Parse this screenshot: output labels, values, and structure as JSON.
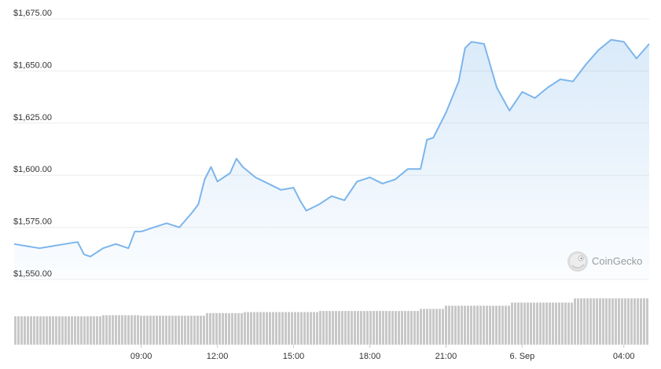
{
  "chart_data": {
    "type": "area",
    "title": "",
    "xlabel": "",
    "ylabel": "",
    "y_ticks": [
      {
        "value": 1675,
        "label": "$1,675.00"
      },
      {
        "value": 1650,
        "label": "$1,650.00"
      },
      {
        "value": 1625,
        "label": "$1,625.00"
      },
      {
        "value": 1600,
        "label": "$1,600.00"
      },
      {
        "value": 1575,
        "label": "$1,575.00"
      },
      {
        "value": 1550,
        "label": "$1,550.00"
      }
    ],
    "ylim": [
      1550,
      1675
    ],
    "xlim": [
      "05 Sep 04:00",
      "06 Sep 05:00"
    ],
    "x_ticks": [
      {
        "value": "05 Sep 09:00",
        "label": "09:00"
      },
      {
        "value": "05 Sep 12:00",
        "label": "12:00"
      },
      {
        "value": "05 Sep 15:00",
        "label": "15:00"
      },
      {
        "value": "05 Sep 18:00",
        "label": "18:00"
      },
      {
        "value": "05 Sep 21:00",
        "label": "21:00"
      },
      {
        "value": "06 Sep 00:00",
        "label": "6. Sep"
      },
      {
        "value": "06 Sep 04:00",
        "label": "04:00"
      }
    ],
    "grid": "horizontal",
    "line_color": "#7cb5ec",
    "bar_color": "#c8c8c8",
    "price_series": [
      [
        "05 Sep 04:00",
        1567
      ],
      [
        "05 Sep 04:30",
        1566
      ],
      [
        "05 Sep 05:00",
        1565
      ],
      [
        "05 Sep 05:30",
        1566
      ],
      [
        "05 Sep 06:00",
        1567
      ],
      [
        "05 Sep 06:30",
        1568
      ],
      [
        "05 Sep 06:45",
        1562
      ],
      [
        "05 Sep 07:00",
        1561
      ],
      [
        "05 Sep 07:30",
        1565
      ],
      [
        "05 Sep 08:00",
        1567
      ],
      [
        "05 Sep 08:30",
        1565
      ],
      [
        "05 Sep 08:45",
        1573
      ],
      [
        "05 Sep 09:00",
        1573
      ],
      [
        "05 Sep 09:30",
        1575
      ],
      [
        "05 Sep 10:00",
        1577
      ],
      [
        "05 Sep 10:30",
        1575
      ],
      [
        "05 Sep 11:00",
        1582
      ],
      [
        "05 Sep 11:15",
        1586
      ],
      [
        "05 Sep 11:30",
        1598
      ],
      [
        "05 Sep 11:45",
        1604
      ],
      [
        "05 Sep 12:00",
        1597
      ],
      [
        "05 Sep 12:30",
        1601
      ],
      [
        "05 Sep 12:45",
        1608
      ],
      [
        "05 Sep 13:00",
        1604
      ],
      [
        "05 Sep 13:30",
        1599
      ],
      [
        "05 Sep 14:00",
        1596
      ],
      [
        "05 Sep 14:30",
        1593
      ],
      [
        "05 Sep 15:00",
        1594
      ],
      [
        "05 Sep 15:15",
        1588
      ],
      [
        "05 Sep 15:30",
        1583
      ],
      [
        "05 Sep 16:00",
        1586
      ],
      [
        "05 Sep 16:30",
        1590
      ],
      [
        "05 Sep 17:00",
        1588
      ],
      [
        "05 Sep 17:30",
        1597
      ],
      [
        "05 Sep 18:00",
        1599
      ],
      [
        "05 Sep 18:30",
        1596
      ],
      [
        "05 Sep 19:00",
        1598
      ],
      [
        "05 Sep 19:30",
        1603
      ],
      [
        "05 Sep 20:00",
        1603
      ],
      [
        "05 Sep 20:15",
        1617
      ],
      [
        "05 Sep 20:30",
        1618
      ],
      [
        "05 Sep 21:00",
        1630
      ],
      [
        "05 Sep 21:30",
        1645
      ],
      [
        "05 Sep 21:45",
        1661
      ],
      [
        "05 Sep 22:00",
        1664
      ],
      [
        "05 Sep 22:30",
        1663
      ],
      [
        "05 Sep 23:00",
        1642
      ],
      [
        "05 Sep 23:30",
        1631
      ],
      [
        "06 Sep 00:00",
        1640
      ],
      [
        "06 Sep 00:30",
        1637
      ],
      [
        "06 Sep 01:00",
        1642
      ],
      [
        "06 Sep 01:30",
        1646
      ],
      [
        "06 Sep 02:00",
        1645
      ],
      [
        "06 Sep 02:30",
        1653
      ],
      [
        "06 Sep 03:00",
        1660
      ],
      [
        "06 Sep 03:30",
        1665
      ],
      [
        "06 Sep 04:00",
        1664
      ],
      [
        "06 Sep 04:30",
        1656
      ],
      [
        "06 Sep 05:00",
        1663
      ]
    ],
    "volume_description": "relative daily-volume bars, rising slowly left to right",
    "volume_levels": [
      {
        "from": "05 Sep 04:00",
        "to": "05 Sep 07:30",
        "level": 0.54
      },
      {
        "from": "05 Sep 07:30",
        "to": "05 Sep 09:00",
        "level": 0.56
      },
      {
        "from": "05 Sep 09:00",
        "to": "05 Sep 11:30",
        "level": 0.55
      },
      {
        "from": "05 Sep 11:30",
        "to": "05 Sep 13:00",
        "level": 0.6
      },
      {
        "from": "05 Sep 13:00",
        "to": "05 Sep 16:00",
        "level": 0.62
      },
      {
        "from": "05 Sep 16:00",
        "to": "05 Sep 20:00",
        "level": 0.64
      },
      {
        "from": "05 Sep 20:00",
        "to": "05 Sep 21:00",
        "level": 0.68
      },
      {
        "from": "05 Sep 21:00",
        "to": "05 Sep 23:30",
        "level": 0.74
      },
      {
        "from": "05 Sep 23:30",
        "to": "06 Sep 02:00",
        "level": 0.8
      },
      {
        "from": "06 Sep 02:00",
        "to": "06 Sep 05:00",
        "level": 0.88
      }
    ]
  },
  "watermark": {
    "label": "CoinGecko",
    "icon": "coingecko-gecko-icon"
  }
}
